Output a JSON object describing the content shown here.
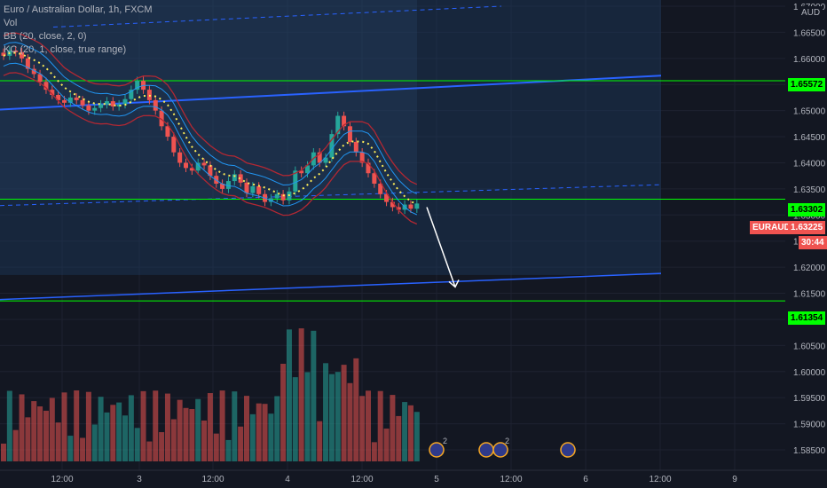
{
  "legend": {
    "title": "Euro / Australian Dollar, 1h, FXCM",
    "vol": "Vol",
    "bb": "BB (20, close, 2, 0)",
    "kc": "KC (20, 1, close, true range)"
  },
  "currency": "AUD",
  "symbol": "EURAUD",
  "countdown": "30:44",
  "price_tags": {
    "upper_level": "1.65572",
    "mid_level": "1.63302",
    "current": "1.63225",
    "lower_level": "1.61354"
  },
  "colors": {
    "background": "#131722",
    "up": "#26a69a",
    "down": "#ef5350",
    "level_line": "#00ff00",
    "channel": "#2962ff",
    "bollinger": "#b22833",
    "keltner": "#2196f3",
    "projection_box": "#1c3a5e"
  },
  "event_markers": [
    {
      "x_label": "5",
      "count": "2"
    },
    {
      "x_label": "12:00",
      "count": "2"
    },
    {
      "x_label": "6",
      "count": ""
    }
  ],
  "chart_data": {
    "type": "candlestick",
    "title": "Euro / Australian Dollar, 1h, FXCM",
    "y_ticks": [
      "1.67000",
      "1.66500",
      "1.66000",
      "1.65500",
      "1.65000",
      "1.64500",
      "1.64000",
      "1.63500",
      "1.63000",
      "1.62500",
      "1.62000",
      "1.61500",
      "1.61000",
      "1.60500",
      "1.60000",
      "1.59500",
      "1.59000",
      "1.58500"
    ],
    "x_ticks": [
      "12:00",
      "3",
      "12:00",
      "4",
      "12:00",
      "5",
      "12:00",
      "6",
      "12:00",
      "9"
    ],
    "ylim": [
      1.5872,
      1.6705
    ],
    "horizontal_levels": [
      1.65572,
      1.63302,
      1.61354
    ],
    "close_series": [
      1.6605,
      1.6615,
      1.6612,
      1.66,
      1.658,
      1.657,
      1.6555,
      1.654,
      1.653,
      1.652,
      1.6515,
      1.6525,
      1.652,
      1.651,
      1.65,
      1.6505,
      1.6512,
      1.6518,
      1.6508,
      1.6512,
      1.6522,
      1.654,
      1.6557,
      1.654,
      1.652,
      1.65,
      1.647,
      1.645,
      1.642,
      1.64,
      1.639,
      1.6385,
      1.64,
      1.6395,
      1.6375,
      1.636,
      1.635,
      1.6365,
      1.6378,
      1.6362,
      1.6342,
      1.6355,
      1.634,
      1.6325,
      1.6332,
      1.634,
      1.6328,
      1.6345,
      1.6385,
      1.638,
      1.6395,
      1.642,
      1.64,
      1.641,
      1.6455,
      1.649,
      1.647,
      1.644,
      1.642,
      1.64,
      1.638,
      1.636,
      1.634,
      1.6325,
      1.6315,
      1.631,
      1.632,
      1.6312,
      1.6322
    ]
  }
}
